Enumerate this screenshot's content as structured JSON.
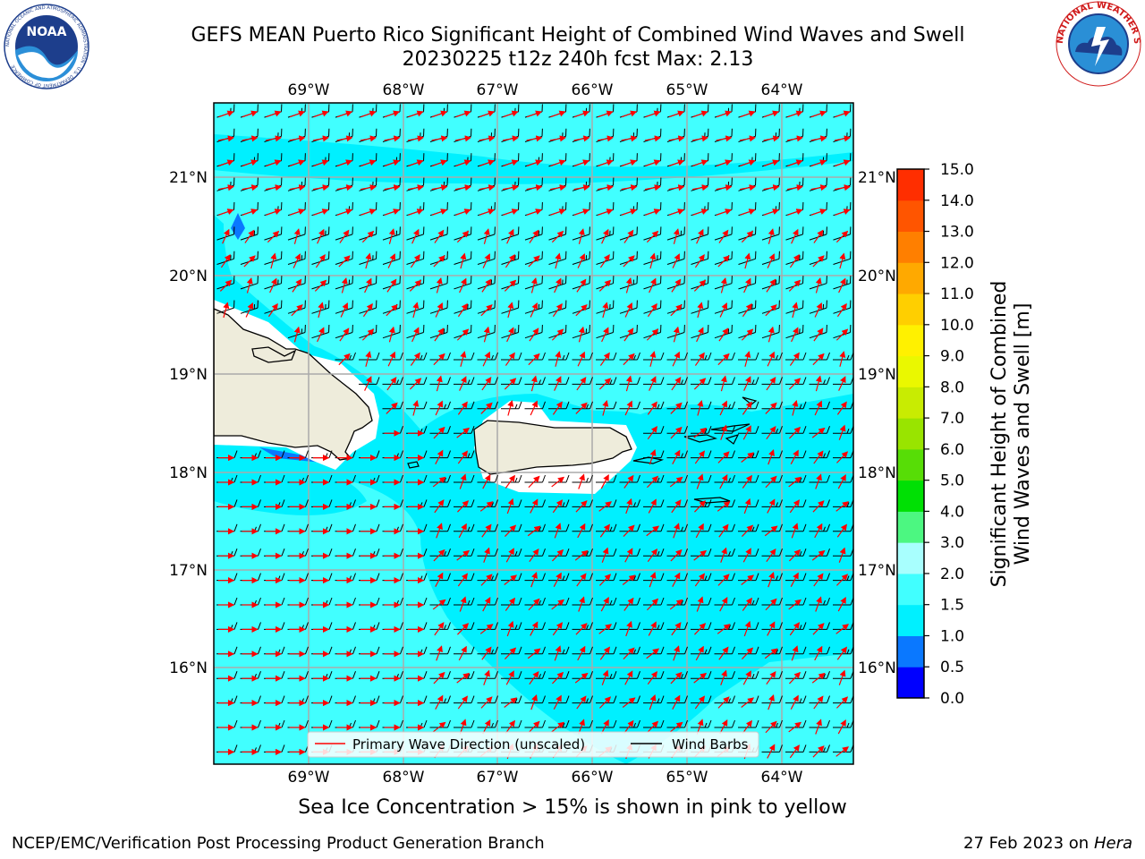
{
  "header": {
    "title_line1": "GEFS MEAN Puerto Rico Significant Height of Combined Wind Waves and Swell",
    "title_line2": "20230225 t12z 240h fcst   Max: 2.13",
    "noaa_logo_text": "NOAA",
    "noaa_ring_text": "NATIONAL OCEANIC AND ATMOSPHERIC ADMINISTRATION · U.S. DEPARTMENT OF COMMERCE",
    "nws_ring_text": "NATIONAL WEATHER SERVICE"
  },
  "map": {
    "lon_labels": [
      "69°W",
      "68°W",
      "67°W",
      "66°W",
      "65°W",
      "64°W"
    ],
    "lat_labels": [
      "21°N",
      "20°N",
      "19°N",
      "18°N",
      "17°N",
      "16°N"
    ],
    "lon_range": [
      -70.0,
      -63.25
    ],
    "lat_range": [
      15.0,
      21.75
    ],
    "max_value": 2.13,
    "land_color": "#eeecdb",
    "grid_color": "#aaaaaa",
    "barb_color": "#000000",
    "wave_arrow_color": "#ff0000",
    "legend": {
      "wave_direction": "Primary Wave Direction (unscaled)",
      "wind_barbs": "Wind Barbs"
    }
  },
  "colorbar": {
    "label_line1": "Significant Height of Combined",
    "label_line2": "Wind Waves and Swell [m]",
    "ticks": [
      "0.0",
      "0.5",
      "1.0",
      "1.5",
      "2.0",
      "3.0",
      "4.0",
      "5.0",
      "6.0",
      "7.0",
      "8.0",
      "9.0",
      "10.0",
      "11.0",
      "12.0",
      "13.0",
      "14.0",
      "15.0"
    ],
    "colors": [
      "#0000ff",
      "#0a78ff",
      "#00f0ff",
      "#41ffff",
      "#a8fffe",
      "#4cf781",
      "#00e004",
      "#57dd06",
      "#99e400",
      "#c8ec02",
      "#eaf800",
      "#fff100",
      "#ffcf00",
      "#ffa900",
      "#ff7f00",
      "#ff5500",
      "#ff2e00",
      "#ff0000"
    ]
  },
  "footer": {
    "note": "Sea Ice Concentration > 15% is shown in pink to yellow",
    "credit_left": "NCEP/EMC/Verification Post Processing Product Generation Branch",
    "credit_date": "27 Feb 2023 on",
    "credit_host": "Hera"
  }
}
